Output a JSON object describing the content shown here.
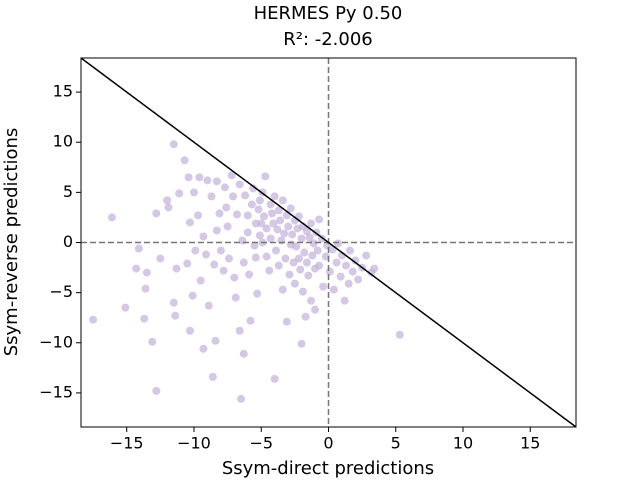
{
  "chart_data": {
    "type": "scatter",
    "title": "HERMES Py 0.50",
    "subtitle": "R²: -2.006",
    "x_label": "Ssym-direct predictions",
    "y_label": "Ssym-reverse predictions",
    "color": "#c3b0d9",
    "alpha": 0.7,
    "xlim": [
      -18.4,
      18.4
    ],
    "ylim": [
      -18.4,
      18.4
    ],
    "xticks": [
      {
        "value": -15,
        "label": "−15"
      },
      {
        "value": -10,
        "label": "−10"
      },
      {
        "value": -5,
        "label": "−5"
      },
      0,
      5,
      10,
      15
    ],
    "yticks": [
      {
        "value": -15,
        "label": "−15"
      },
      {
        "value": -10,
        "label": "−10"
      },
      {
        "value": -5,
        "label": "−5"
      },
      0,
      5,
      10,
      15
    ],
    "reference_lines": [
      0
    ],
    "diagonal_slope": -1,
    "x": [
      -16.1,
      -17.5,
      -15.1,
      -14.1,
      -14.3,
      -13.5,
      -13.6,
      -13.7,
      -13.1,
      -12.8,
      -12.8,
      -12.5,
      -12.0,
      -11.9,
      -11.5,
      -11.3,
      -11.5,
      -11.4,
      -11.1,
      -10.7,
      -10.5,
      -10.4,
      -10.3,
      -10.3,
      -10.1,
      -10.0,
      -9.9,
      -9.7,
      -9.6,
      -9.5,
      -9.3,
      -9.3,
      -9.1,
      -9.0,
      -8.9,
      -8.7,
      -8.5,
      -8.4,
      -8.3,
      -8.3,
      -8.6,
      -8.1,
      -8.0,
      -7.8,
      -7.7,
      -7.6,
      -7.5,
      -7.4,
      -7.2,
      -7.1,
      -7.0,
      -6.9,
      -6.8,
      -6.6,
      -6.6,
      -6.5,
      -6.4,
      -6.3,
      -6.3,
      -6.2,
      -6.0,
      -6.0,
      -5.9,
      -5.8,
      -5.7,
      -5.6,
      -5.5,
      -5.4,
      -5.4,
      -5.3,
      -5.2,
      -5.1,
      -5.1,
      -5.0,
      -4.9,
      -4.9,
      -4.8,
      -4.7,
      -4.6,
      -4.6,
      -4.4,
      -4.3,
      -4.3,
      -4.2,
      -4.1,
      -4.0,
      -4.0,
      -3.9,
      -3.8,
      -3.7,
      -3.7,
      -3.6,
      -3.5,
      -3.4,
      -3.4,
      -3.3,
      -3.2,
      -3.1,
      -3.1,
      -3.0,
      -2.9,
      -2.8,
      -2.8,
      -2.7,
      -2.6,
      -2.5,
      -2.5,
      -2.4,
      -2.3,
      -2.2,
      -2.2,
      -2.1,
      -2.0,
      -2.0,
      -1.9,
      -1.9,
      -1.8,
      -1.7,
      -1.6,
      -1.6,
      -1.5,
      -1.4,
      -1.3,
      -1.3,
      -1.2,
      -1.1,
      -1.0,
      -1.0,
      -0.9,
      -0.8,
      -0.7,
      -0.7,
      -0.5,
      -0.4,
      -0.2,
      -0.1,
      0.1,
      0.3,
      0.4,
      0.6,
      0.7,
      0.9,
      1.0,
      1.2,
      1.3,
      1.5,
      1.6,
      1.8,
      2.0,
      2.2,
      2.5,
      2.8,
      3.2,
      3.4,
      5.3
    ],
    "y": [
      2.5,
      -7.7,
      -6.5,
      -0.6,
      -2.6,
      -3.0,
      -4.6,
      -7.6,
      -9.9,
      -14.8,
      2.9,
      -1.6,
      4.2,
      3.5,
      9.8,
      -2.6,
      -6.0,
      -7.3,
      4.9,
      8.2,
      -2.1,
      6.5,
      2.0,
      -8.8,
      -5.3,
      5.0,
      -0.8,
      2.7,
      6.5,
      -3.8,
      -10.6,
      0.6,
      -1.2,
      6.2,
      -6.3,
      4.6,
      -2.2,
      -9.8,
      6.1,
      1.2,
      -13.4,
      2.9,
      -0.8,
      -2.8,
      5.5,
      3.5,
      1.6,
      -1.6,
      6.7,
      4.6,
      -3.5,
      -5.5,
      2.8,
      -8.8,
      5.8,
      -15.6,
      0.2,
      -2.0,
      -11.1,
      4.7,
      2.7,
      1.0,
      -3.2,
      -7.8,
      3.8,
      5.4,
      -0.3,
      1.9,
      -1.5,
      -5.1,
      3.3,
      0.7,
      4.2,
      1.9,
      0.0,
      5.0,
      2.6,
      6.6,
      -1.4,
      1.4,
      -2.8,
      3.8,
      0.4,
      2.9,
      1.9,
      -13.6,
      4.6,
      -0.8,
      1.3,
      3.2,
      -2.3,
      2.2,
      0.2,
      4.2,
      -4.7,
      0.9,
      -1.6,
      2.7,
      -7.9,
      1.6,
      -3.2,
      -0.2,
      3.4,
      0.8,
      -2.0,
      2.2,
      -4.1,
      -0.4,
      1.4,
      -1.6,
      2.6,
      -2.7,
      0.4,
      -10.1,
      -4.9,
      1.6,
      -1.0,
      -7.4,
      1.1,
      -2.0,
      -3.3,
      0.5,
      1.9,
      -5.8,
      -1.3,
      -0.1,
      -2.6,
      -6.7,
      1.0,
      -0.8,
      2.3,
      -2.3,
      0.4,
      -4.4,
      -1.4,
      -0.3,
      -2.9,
      -0.7,
      -4.7,
      -2.0,
      -0.1,
      -3.4,
      -1.3,
      -5.8,
      -2.3,
      -4.1,
      -0.8,
      -2.9,
      -1.8,
      -3.7,
      -2.5,
      -1.3,
      -3.0,
      -2.6,
      -9.2
    ]
  }
}
